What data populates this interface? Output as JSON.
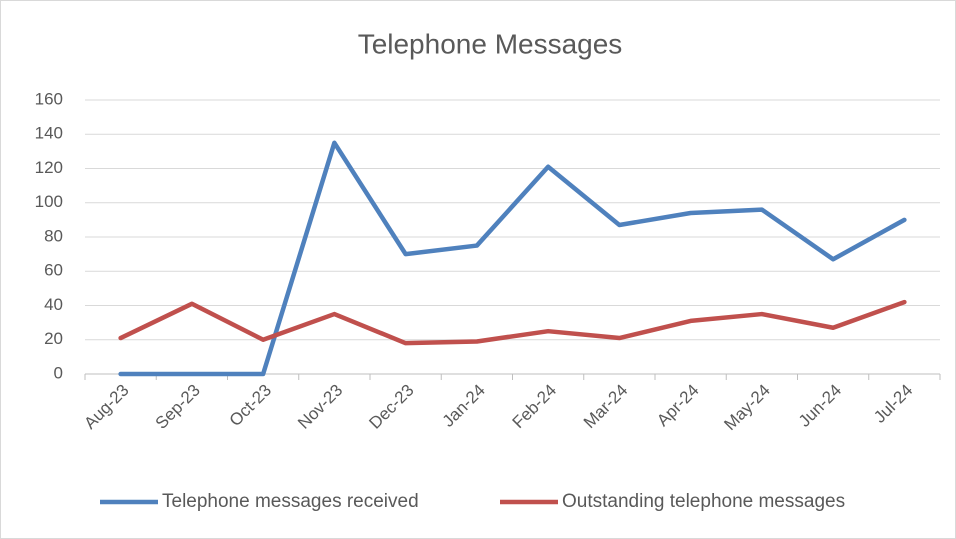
{
  "chart_data": {
    "type": "line",
    "title": "Telephone Messages",
    "categories": [
      "Aug-23",
      "Sep-23",
      "Oct-23",
      "Nov-23",
      "Dec-23",
      "Jan-24",
      "Feb-24",
      "Mar-24",
      "Apr-24",
      "May-24",
      "Jun-24",
      "Jul-24"
    ],
    "series": [
      {
        "name": "Telephone messages received",
        "color": "#4f81bd",
        "values": [
          0,
          0,
          0,
          135,
          70,
          75,
          121,
          87,
          94,
          96,
          67,
          90
        ]
      },
      {
        "name": "Outstanding telephone messages",
        "color": "#c0504d",
        "values": [
          21,
          41,
          20,
          35,
          18,
          19,
          25,
          21,
          31,
          35,
          27,
          42
        ]
      }
    ],
    "ylim": [
      0,
      160
    ],
    "yticks": [
      0,
      20,
      40,
      60,
      80,
      100,
      120,
      140,
      160
    ],
    "grid": true,
    "legend": "bottom"
  }
}
